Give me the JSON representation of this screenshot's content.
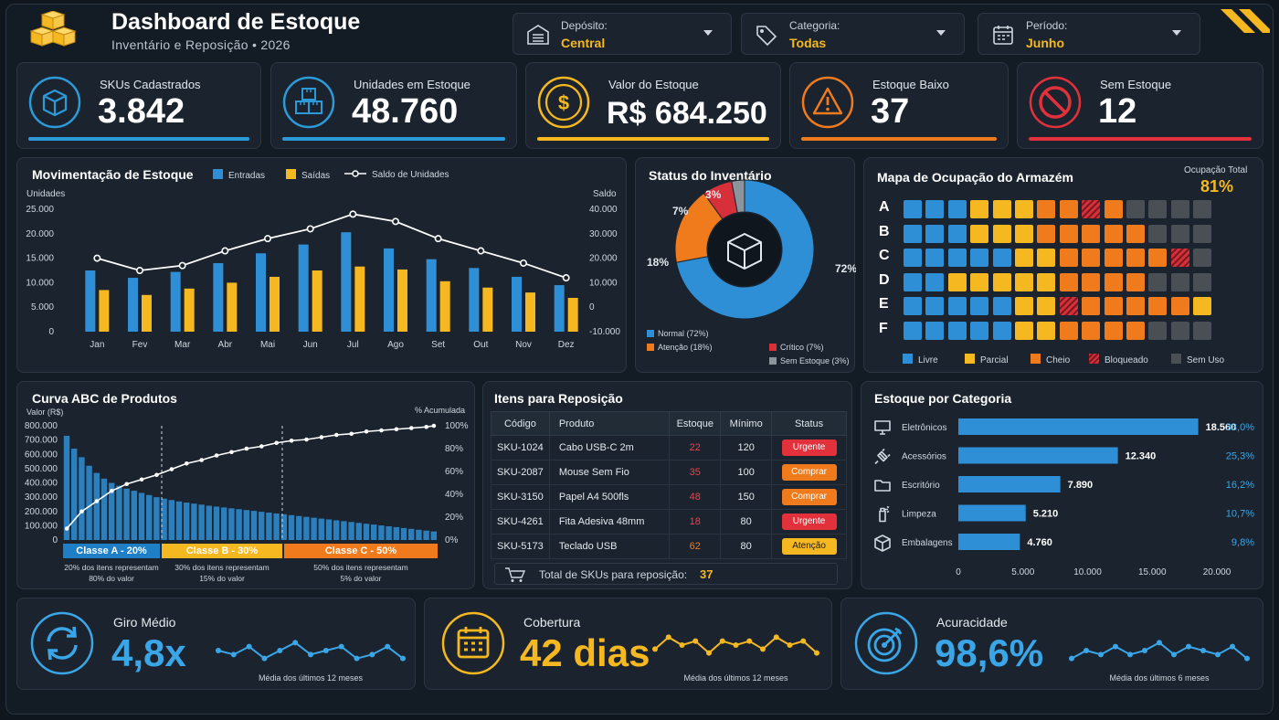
{
  "header": {
    "title": "Dashboard de Estoque",
    "subtitle": "Inventário e Reposição • 2026",
    "filters": [
      {
        "label": "Depósito:",
        "value": "Central",
        "icon": "warehouse-icon"
      },
      {
        "label": "Categoria:",
        "value": "Todas",
        "icon": "tag-icon"
      },
      {
        "label": "Período:",
        "value": "Junho",
        "icon": "calendar-icon"
      }
    ]
  },
  "kpis": [
    {
      "label": "SKUs Cadastrados",
      "value": "3.842",
      "color": "#2c9ad8",
      "icon": "box-icon"
    },
    {
      "label": "Unidades em Estoque",
      "value": "48.760",
      "color": "#2c9ad8",
      "icon": "boxes-icon"
    },
    {
      "label": "Valor do Estoque",
      "value": "R$ 684.250",
      "color": "#f5b820",
      "icon": "dollar-icon"
    },
    {
      "label": "Estoque Baixo",
      "value": "37",
      "color": "#f07b1c",
      "icon": "warning-icon"
    },
    {
      "label": "Sem Estoque",
      "value": "12",
      "color": "#e2313b",
      "icon": "block-icon"
    }
  ],
  "movement": {
    "title": "Movimentação de Estoque",
    "legend": [
      "Entradas",
      "Saídas",
      "Saldo de Unidades"
    ],
    "ylabel_left": "Unidades",
    "ylabel_right": "Saldo",
    "left_ticks": [
      "25.000",
      "20.000",
      "15.000",
      "10.000",
      "5.000",
      "0"
    ],
    "right_ticks": [
      "40.000",
      "30.000",
      "20.000",
      "10.000",
      "0",
      "-10.000"
    ]
  },
  "status": {
    "title": "Status do Inventário",
    "slice_labels": [
      "72%",
      "18%",
      "7%",
      "3%"
    ],
    "legend": [
      "Normal (72%)",
      "Atenção (18%)",
      "Crítico (7%)",
      "Sem Estoque (3%)"
    ]
  },
  "warehouse": {
    "title": "Mapa de Ocupação do Armazém",
    "occupancy_label": "Ocupação Total",
    "occupancy_value": "81%",
    "rows": [
      "A",
      "B",
      "C",
      "D",
      "E",
      "F"
    ],
    "grid": [
      "LLLPPPOOHOGGGG",
      "LLLPPPOOOOOGGG",
      "LLLLLPPOOOOOHG",
      "LLPPPPPOOOOGGG",
      "LLLLLPPHOOOOOP",
      "LLLLLPPOOOOGGG"
    ],
    "legend": [
      "Livre",
      "Parcial",
      "Cheio",
      "Bloqueado",
      "Sem Uso"
    ],
    "colors": {
      "L": "#2e8fd6",
      "P": "#f5b820",
      "O": "#f07b1c",
      "H": "#d8303a",
      "G": "#4a4f55"
    }
  },
  "abc": {
    "title": "Curva ABC de Produtos",
    "ylabel_left": "Valor (R$)",
    "ylabel_right": "% Acumulada",
    "left_ticks": [
      "800.000",
      "700.000",
      "600.000",
      "500.000",
      "400.000",
      "300.000",
      "200.000",
      "100.000",
      "0"
    ],
    "right_ticks": [
      "100%",
      "80%",
      "60%",
      "40%",
      "20%",
      "0%"
    ],
    "classes": [
      {
        "label": "Classe A - 20%",
        "desc1": "20% dos itens representam",
        "desc2": "80% do valor",
        "color": "#1f7fc6"
      },
      {
        "label": "Classe B - 30%",
        "desc1": "30% dos itens representam",
        "desc2": "15% do valor",
        "color": "#f5b820"
      },
      {
        "label": "Classe C - 50%",
        "desc1": "50% dos itens representam",
        "desc2": "5% do valor",
        "color": "#f07b1c"
      }
    ]
  },
  "reposicao": {
    "title": "Itens para Reposição",
    "headers": [
      "Código",
      "Produto",
      "Estoque",
      "Mínimo",
      "Status"
    ],
    "rows": [
      {
        "code": "SKU-1024",
        "product": "Cabo USB-C 2m",
        "stock": "22",
        "min": "120",
        "status": "Urgente"
      },
      {
        "code": "SKU-2087",
        "product": "Mouse Sem Fio",
        "stock": "35",
        "min": "100",
        "status": "Comprar"
      },
      {
        "code": "SKU-3150",
        "product": "Papel A4 500fls",
        "stock": "48",
        "min": "150",
        "status": "Comprar"
      },
      {
        "code": "SKU-4261",
        "product": "Fita Adesiva 48mm",
        "stock": "18",
        "min": "80",
        "status": "Urgente"
      },
      {
        "code": "SKU-5173",
        "product": "Teclado USB",
        "stock": "62",
        "min": "80",
        "status": "Atenção"
      }
    ],
    "footer_label": "Total de SKUs para reposição:",
    "footer_value": "37"
  },
  "categoria": {
    "title": "Estoque por Categoria",
    "x_ticks": [
      "0",
      "5.000",
      "10.000",
      "15.000",
      "20.000"
    ]
  },
  "bottom": [
    {
      "label": "Giro Médio",
      "value": "4,8x",
      "note": "Média dos últimos 12 meses",
      "color": "#3aa6e8",
      "icon": "refresh-icon"
    },
    {
      "label": "Cobertura",
      "value": "42 dias",
      "note": "Média dos últimos 12 meses",
      "color": "#f5b820",
      "icon": "calendar-icon"
    },
    {
      "label": "Acuracidade",
      "value": "98,6%",
      "note": "Média dos últimos 6 meses",
      "color": "#3aa6e8",
      "icon": "target-icon"
    }
  ],
  "chart_data": [
    {
      "type": "bar",
      "title": "Movimentação de Estoque",
      "ylabel": "Unidades",
      "y2label": "Saldo",
      "categories": [
        "Jan",
        "Fev",
        "Mar",
        "Abr",
        "Mai",
        "Jun",
        "Jul",
        "Ago",
        "Set",
        "Out",
        "Nov",
        "Dez"
      ],
      "ylim": [
        0,
        25000
      ],
      "y2lim": [
        -10000,
        40000
      ],
      "series": [
        {
          "name": "Entradas",
          "type": "bar",
          "color": "#2e8fd6",
          "values": [
            12500,
            11000,
            12200,
            14000,
            16000,
            17800,
            20300,
            17000,
            14800,
            13000,
            11200,
            9500
          ]
        },
        {
          "name": "Saídas",
          "type": "bar",
          "color": "#f5b820",
          "values": [
            8500,
            7500,
            8800,
            10000,
            11200,
            12500,
            13300,
            12700,
            10300,
            9000,
            8000,
            6900
          ]
        },
        {
          "name": "Saldo de Unidades",
          "type": "line",
          "axis": "right",
          "color": "#ffffff",
          "values": [
            20000,
            15000,
            17000,
            23000,
            28000,
            32000,
            38000,
            35000,
            28000,
            23000,
            18000,
            12000
          ]
        }
      ],
      "grid": false,
      "legend": "top"
    },
    {
      "type": "pie",
      "title": "Status do Inventário",
      "categories": [
        "Normal",
        "Atenção",
        "Crítico",
        "Sem Estoque"
      ],
      "values": [
        72,
        18,
        7,
        3
      ],
      "colors": [
        "#2e8fd6",
        "#f07b1c",
        "#d8303a",
        "#8c949c"
      ]
    },
    {
      "type": "bar",
      "title": "Curva ABC de Produtos",
      "ylabel": "Valor (R$)",
      "y2label": "% Acumulada",
      "ylim": [
        0,
        800000
      ],
      "y2lim": [
        0,
        100
      ],
      "values": [
        730000,
        640000,
        580000,
        520000,
        470000,
        430000,
        400000,
        380000,
        360000,
        345000,
        330000,
        315000,
        300000,
        290000,
        280000,
        270000,
        262000,
        255000,
        248000,
        240000,
        234000,
        228000,
        222000,
        216000,
        210000,
        204000,
        198000,
        192000,
        186000,
        180000,
        174000,
        168000,
        162000,
        156000,
        150000,
        144000,
        138000,
        132000,
        126000,
        120000,
        114000,
        108000,
        102000,
        96000,
        90000,
        84000,
        78000,
        72000,
        66000,
        60000
      ],
      "cumulative": [
        {
          "x": 0,
          "y": 10
        },
        {
          "x": 2,
          "y": 25
        },
        {
          "x": 4,
          "y": 34
        },
        {
          "x": 6,
          "y": 43
        },
        {
          "x": 8,
          "y": 49
        },
        {
          "x": 10,
          "y": 53
        },
        {
          "x": 12,
          "y": 57
        },
        {
          "x": 14,
          "y": 62
        },
        {
          "x": 16,
          "y": 67
        },
        {
          "x": 18,
          "y": 70
        },
        {
          "x": 20,
          "y": 74
        },
        {
          "x": 22,
          "y": 77
        },
        {
          "x": 24,
          "y": 80
        },
        {
          "x": 26,
          "y": 82
        },
        {
          "x": 28,
          "y": 85
        },
        {
          "x": 30,
          "y": 87
        },
        {
          "x": 32,
          "y": 88
        },
        {
          "x": 34,
          "y": 90
        },
        {
          "x": 36,
          "y": 92
        },
        {
          "x": 38,
          "y": 93
        },
        {
          "x": 40,
          "y": 95
        },
        {
          "x": 42,
          "y": 96
        },
        {
          "x": 44,
          "y": 97
        },
        {
          "x": 46,
          "y": 98
        },
        {
          "x": 48,
          "y": 99
        },
        {
          "x": 49,
          "y": 100
        }
      ],
      "color": "#2e8fd6"
    },
    {
      "type": "bar",
      "orientation": "horizontal",
      "title": "Estoque por Categoria",
      "categories": [
        "Eletrônicos",
        "Acessórios",
        "Escritório",
        "Limpeza",
        "Embalagens"
      ],
      "values": [
        18560,
        12340,
        7890,
        5210,
        4760
      ],
      "value_labels": [
        "18.560",
        "12.340",
        "7.890",
        "5.210",
        "4.760"
      ],
      "percent_labels": [
        "38,0%",
        "25,3%",
        "16,2%",
        "10,7%",
        "9,8%"
      ],
      "icons": [
        "monitor-icon",
        "plug-icon",
        "folder-icon",
        "spray-icon",
        "package-icon"
      ],
      "xlim": [
        0,
        20000
      ],
      "color": "#2e8fd6"
    },
    {
      "type": "line",
      "title": "Giro Médio",
      "values": [
        5,
        4,
        6,
        3,
        5,
        7,
        4,
        5,
        6,
        3,
        4,
        6,
        3
      ]
    },
    {
      "type": "line",
      "title": "Cobertura",
      "values": [
        4,
        7,
        5,
        6,
        3,
        6,
        5,
        6,
        4,
        7,
        5,
        6,
        3
      ]
    },
    {
      "type": "line",
      "title": "Acuracidade",
      "values": [
        3,
        5,
        4,
        6,
        4,
        5,
        7,
        4,
        6,
        5,
        4,
        6,
        3
      ]
    }
  ]
}
